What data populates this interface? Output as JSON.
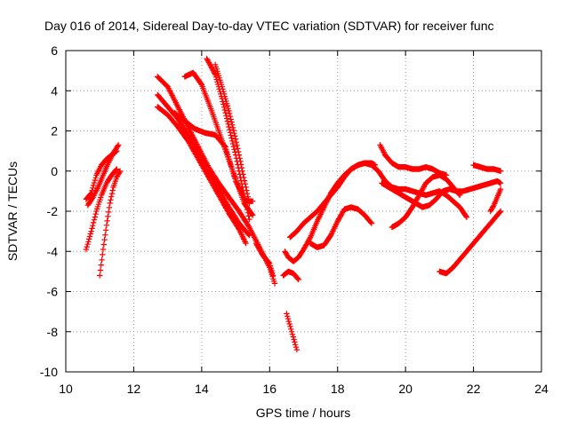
{
  "chart_data": {
    "type": "scatter",
    "title": "Day 016 of 2014, Sidereal Day-to-day VTEC variation (SDTVAR) for receiver func",
    "xlabel": "GPS time / hours",
    "ylabel": "SDTVAR / TECUs",
    "xlim": [
      10,
      24
    ],
    "ylim": [
      -10,
      6
    ],
    "xticks": [
      10,
      12,
      14,
      16,
      18,
      20,
      22,
      24
    ],
    "xtick_labels": [
      "10",
      "12",
      "14",
      "16",
      "18",
      "20",
      "22",
      "24"
    ],
    "yticks": [
      -10,
      -8,
      -6,
      -4,
      -2,
      0,
      2,
      4,
      6
    ],
    "ytick_labels": [
      "-10",
      "-8",
      "-6",
      "-4",
      "-2",
      "0",
      "2",
      "4",
      "6"
    ],
    "grid": true,
    "marker": "+",
    "marker_color": "#ff0000",
    "series": [
      {
        "name": "s1",
        "x": [
          10.6,
          10.75,
          10.9,
          11.05,
          11.2,
          11.35,
          11.5
        ],
        "y": [
          -1.4,
          -1.1,
          -0.2,
          0.3,
          0.6,
          0.8,
          1.0
        ]
      },
      {
        "name": "s2",
        "x": [
          10.65,
          10.8,
          10.95,
          11.1,
          11.25,
          11.4,
          11.55
        ],
        "y": [
          -1.7,
          -1.3,
          -0.8,
          -0.2,
          0.4,
          0.9,
          1.3
        ]
      },
      {
        "name": "s3",
        "x": [
          10.6,
          10.75,
          10.9,
          11.05,
          11.2,
          11.35,
          11.5
        ],
        "y": [
          -3.9,
          -3.0,
          -2.0,
          -1.2,
          -0.6,
          -0.2,
          0.1
        ]
      },
      {
        "name": "s4",
        "x": [
          11.0,
          11.1,
          11.2,
          11.3,
          11.4,
          11.5,
          11.6
        ],
        "y": [
          -5.2,
          -3.9,
          -2.7,
          -1.6,
          -0.8,
          -0.3,
          0.0
        ]
      },
      {
        "name": "s5",
        "x": [
          12.7,
          13.0,
          13.3,
          13.6,
          13.9,
          14.2,
          14.5,
          14.8,
          15.1,
          15.4,
          15.7,
          16.0,
          16.15
        ],
        "y": [
          4.7,
          4.2,
          3.2,
          2.2,
          1.2,
          0.2,
          -0.6,
          -1.3,
          -2.0,
          -2.8,
          -3.8,
          -4.8,
          -5.6
        ]
      },
      {
        "name": "s6",
        "x": [
          12.7,
          13.0,
          13.3,
          13.6,
          13.9,
          14.2,
          14.5,
          14.8,
          15.1,
          15.4
        ],
        "y": [
          3.8,
          3.2,
          2.6,
          1.8,
          0.9,
          0.0,
          -0.9,
          -1.8,
          -2.6,
          -3.2
        ]
      },
      {
        "name": "s7",
        "x": [
          12.7,
          13.0,
          13.3,
          13.6,
          13.9,
          14.2,
          14.5,
          14.8,
          15.1,
          15.3
        ],
        "y": [
          3.2,
          2.8,
          2.2,
          1.5,
          0.6,
          -0.3,
          -1.2,
          -2.1,
          -2.9,
          -3.6
        ]
      },
      {
        "name": "s8",
        "x": [
          13.2,
          13.5,
          13.8,
          14.1,
          14.4,
          14.7,
          15.0,
          15.3,
          15.5
        ],
        "y": [
          2.9,
          2.5,
          2.1,
          1.9,
          1.8,
          1.2,
          -0.5,
          -1.5,
          -1.5
        ]
      },
      {
        "name": "s9",
        "x": [
          13.5,
          13.75,
          14.0,
          14.25,
          14.5,
          14.75,
          15.0,
          15.25,
          15.5
        ],
        "y": [
          4.7,
          4.9,
          4.3,
          3.2,
          2.0,
          0.8,
          -0.4,
          -1.6,
          -2.2
        ]
      },
      {
        "name": "s10",
        "x": [
          14.15,
          14.4,
          14.6,
          14.8,
          15.0,
          15.2,
          15.4
        ],
        "y": [
          5.6,
          4.8,
          3.6,
          2.2,
          0.8,
          -0.8,
          -2.4
        ]
      },
      {
        "name": "s11",
        "x": [
          14.4,
          14.6,
          14.8,
          15.0,
          15.2,
          15.4
        ],
        "y": [
          5.3,
          4.2,
          3.0,
          1.6,
          0.0,
          -1.6
        ]
      },
      {
        "name": "s12",
        "x": [
          15.6,
          15.8,
          16.0,
          16.1
        ],
        "y": [
          -3.6,
          -4.2,
          -4.6,
          -5.2
        ]
      },
      {
        "name": "s13",
        "x": [
          16.5,
          16.65,
          16.8
        ],
        "y": [
          -7.1,
          -8.0,
          -8.9
        ]
      },
      {
        "name": "s14",
        "x": [
          16.45,
          16.55,
          16.7,
          16.85,
          17.0,
          17.2,
          17.4,
          17.6,
          17.8,
          18.0,
          18.2,
          18.4,
          18.6,
          18.8,
          19.0,
          19.1
        ],
        "y": [
          -4.0,
          -4.3,
          -4.5,
          -4.3,
          -3.9,
          -3.3,
          -2.5,
          -1.8,
          -1.1,
          -0.6,
          -0.2,
          0.1,
          0.3,
          0.4,
          0.4,
          0.3
        ]
      },
      {
        "name": "s15",
        "x": [
          16.6,
          16.8,
          17.0,
          17.2,
          17.4,
          17.6,
          17.8,
          18.0,
          18.2,
          18.4,
          18.6,
          18.8,
          19.0,
          19.2,
          19.4,
          19.6,
          19.8,
          20.0,
          20.2,
          20.4,
          20.6,
          20.8,
          21.0,
          21.2,
          21.4,
          21.6,
          21.8
        ],
        "y": [
          -3.3,
          -3.0,
          -2.6,
          -2.3,
          -2.0,
          -1.6,
          -1.2,
          -0.8,
          -0.3,
          0.1,
          0.3,
          0.4,
          0.3,
          0.0,
          -0.5,
          -0.8,
          -0.9,
          -0.9,
          -1.0,
          -1.1,
          -1.2,
          -1.1,
          -1.0,
          -1.2,
          -1.5,
          -1.8,
          -2.3
        ]
      },
      {
        "name": "s16",
        "x": [
          16.4,
          16.55,
          16.7,
          16.85
        ],
        "y": [
          -5.2,
          -5.0,
          -5.1,
          -5.4
        ]
      },
      {
        "name": "s17",
        "x": [
          17.2,
          17.4,
          17.6,
          17.8,
          18.0,
          18.2,
          18.4,
          18.6,
          18.8,
          19.0
        ],
        "y": [
          -3.6,
          -3.8,
          -3.7,
          -3.2,
          -2.5,
          -1.9,
          -1.8,
          -1.9,
          -2.2,
          -2.6
        ]
      },
      {
        "name": "s18",
        "x": [
          19.3,
          19.5,
          19.7,
          19.9,
          20.1,
          20.3,
          20.5,
          20.7,
          20.9,
          21.1,
          21.3,
          21.5,
          21.7,
          21.9,
          22.1,
          22.3,
          22.5,
          22.7,
          22.8
        ],
        "y": [
          -0.6,
          -0.8,
          -1.0,
          -1.2,
          -1.4,
          -1.6,
          -1.8,
          -1.7,
          -1.4,
          -1.0,
          -0.9,
          -1.0,
          -1.0,
          -0.9,
          -0.8,
          -0.7,
          -0.6,
          -0.5,
          -0.6
        ]
      },
      {
        "name": "s19",
        "x": [
          19.25,
          19.4,
          19.6,
          19.8,
          20.0,
          20.2,
          20.4,
          20.6,
          20.8,
          21.0,
          21.2
        ],
        "y": [
          1.3,
          0.8,
          0.4,
          0.2,
          0.2,
          0.1,
          0.1,
          0.2,
          0.1,
          -0.1,
          -0.2
        ]
      },
      {
        "name": "s20",
        "x": [
          19.6,
          19.8,
          20.0,
          20.2,
          20.4,
          20.6,
          20.8,
          21.0,
          21.2,
          21.4,
          21.6
        ],
        "y": [
          -2.8,
          -2.6,
          -2.3,
          -1.8,
          -1.2,
          -0.6,
          -0.3,
          -0.2,
          -0.4,
          -0.8,
          -1.2
        ]
      },
      {
        "name": "s21",
        "x": [
          21.0,
          21.2,
          21.4,
          21.6,
          21.8,
          22.0,
          22.2,
          22.4,
          22.6,
          22.8
        ],
        "y": [
          -5.0,
          -5.1,
          -4.8,
          -4.4,
          -4.0,
          -3.6,
          -3.2,
          -2.8,
          -2.4,
          -2.0
        ]
      },
      {
        "name": "s22",
        "x": [
          22.0,
          22.2,
          22.4,
          22.6,
          22.8
        ],
        "y": [
          0.3,
          0.2,
          0.1,
          0.1,
          0.0
        ]
      },
      {
        "name": "s23",
        "x": [
          22.5,
          22.6,
          22.7,
          22.8
        ],
        "y": [
          -2.0,
          -1.7,
          -1.3,
          -0.9
        ]
      }
    ]
  }
}
